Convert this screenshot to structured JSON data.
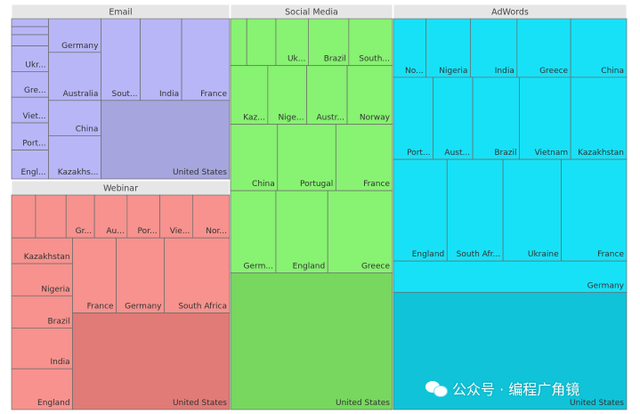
{
  "chart_data": {
    "type": "treemap",
    "groups": [
      {
        "name": "Email",
        "color": "#b8b6f7",
        "big_color": "#a6a5dd",
        "items": [
          {
            "label": "",
            "value": 2
          },
          {
            "label": "",
            "value": 2
          },
          {
            "label": "",
            "value": 2
          },
          {
            "label": "Ukr...",
            "value": 5
          },
          {
            "label": "Gre...",
            "value": 6
          },
          {
            "label": "Viet...",
            "value": 6
          },
          {
            "label": "Port...",
            "value": 6
          },
          {
            "label": "Engl...",
            "value": 7
          },
          {
            "label": "Germany",
            "value": 11
          },
          {
            "label": "Australia",
            "value": 14
          },
          {
            "label": "China",
            "value": 14
          },
          {
            "label": "Kazakhs...",
            "value": 15
          },
          {
            "label": "Sout...",
            "value": 16
          },
          {
            "label": "India",
            "value": 17
          },
          {
            "label": "France",
            "value": 20
          },
          {
            "label": "United States",
            "value": 70
          }
        ]
      },
      {
        "name": "Webinar",
        "color": "#f7928e",
        "big_color": "#e07b77",
        "items": [
          {
            "label": "",
            "value": 4
          },
          {
            "label": "",
            "value": 5
          },
          {
            "label": "Gr...",
            "value": 5
          },
          {
            "label": "Au...",
            "value": 6
          },
          {
            "label": "Por...",
            "value": 6
          },
          {
            "label": "Vie...",
            "value": 6
          },
          {
            "label": "Nor...",
            "value": 6
          },
          {
            "label": "Kazakhstan",
            "value": 7
          },
          {
            "label": "Nigeria",
            "value": 8
          },
          {
            "label": "Brazil",
            "value": 9
          },
          {
            "label": "India",
            "value": 10
          },
          {
            "label": "England",
            "value": 12
          },
          {
            "label": "France",
            "value": 14
          },
          {
            "label": "Germany",
            "value": 15
          },
          {
            "label": "South Africa",
            "value": 19
          },
          {
            "label": "United States",
            "value": 60
          }
        ]
      },
      {
        "name": "Social Media",
        "color": "#88f272",
        "big_color": "#77d75f",
        "items": [
          {
            "label": "",
            "value": 4
          },
          {
            "label": "",
            "value": 4
          },
          {
            "label": "Uk...",
            "value": 5
          },
          {
            "label": "Brazil",
            "value": 6
          },
          {
            "label": "South...",
            "value": 7
          },
          {
            "label": "Kaz...",
            "value": 6
          },
          {
            "label": "Nige...",
            "value": 7
          },
          {
            "label": "Austr...",
            "value": 8
          },
          {
            "label": "Norway",
            "value": 9
          },
          {
            "label": "China",
            "value": 9
          },
          {
            "label": "Portugal",
            "value": 10
          },
          {
            "label": "France",
            "value": 11
          },
          {
            "label": "Germ...",
            "value": 10
          },
          {
            "label": "England",
            "value": 12
          },
          {
            "label": "Greece",
            "value": 15
          },
          {
            "label": "United States",
            "value": 70
          }
        ]
      },
      {
        "name": "AdWords",
        "color": "#17e1f7",
        "big_color": "#10c3d8",
        "items": [
          {
            "label": "No...",
            "value": 5
          },
          {
            "label": "Nigeria",
            "value": 8
          },
          {
            "label": "India",
            "value": 8
          },
          {
            "label": "Greece",
            "value": 9
          },
          {
            "label": "China",
            "value": 9
          },
          {
            "label": "Port...",
            "value": 8
          },
          {
            "label": "Aust...",
            "value": 7
          },
          {
            "label": "Brazil",
            "value": 10
          },
          {
            "label": "Vietnam",
            "value": 10
          },
          {
            "label": "Kazakhstan",
            "value": 10
          },
          {
            "label": "England",
            "value": 12
          },
          {
            "label": "South Afr...",
            "value": 14
          },
          {
            "label": "Ukraine",
            "value": 15
          },
          {
            "label": "France",
            "value": 16
          },
          {
            "label": "Germany",
            "value": 24
          },
          {
            "label": "United States",
            "value": 95
          }
        ]
      }
    ]
  },
  "watermark": {
    "icon": "wechat-icon",
    "text": "公众号 · 编程广角镜"
  }
}
